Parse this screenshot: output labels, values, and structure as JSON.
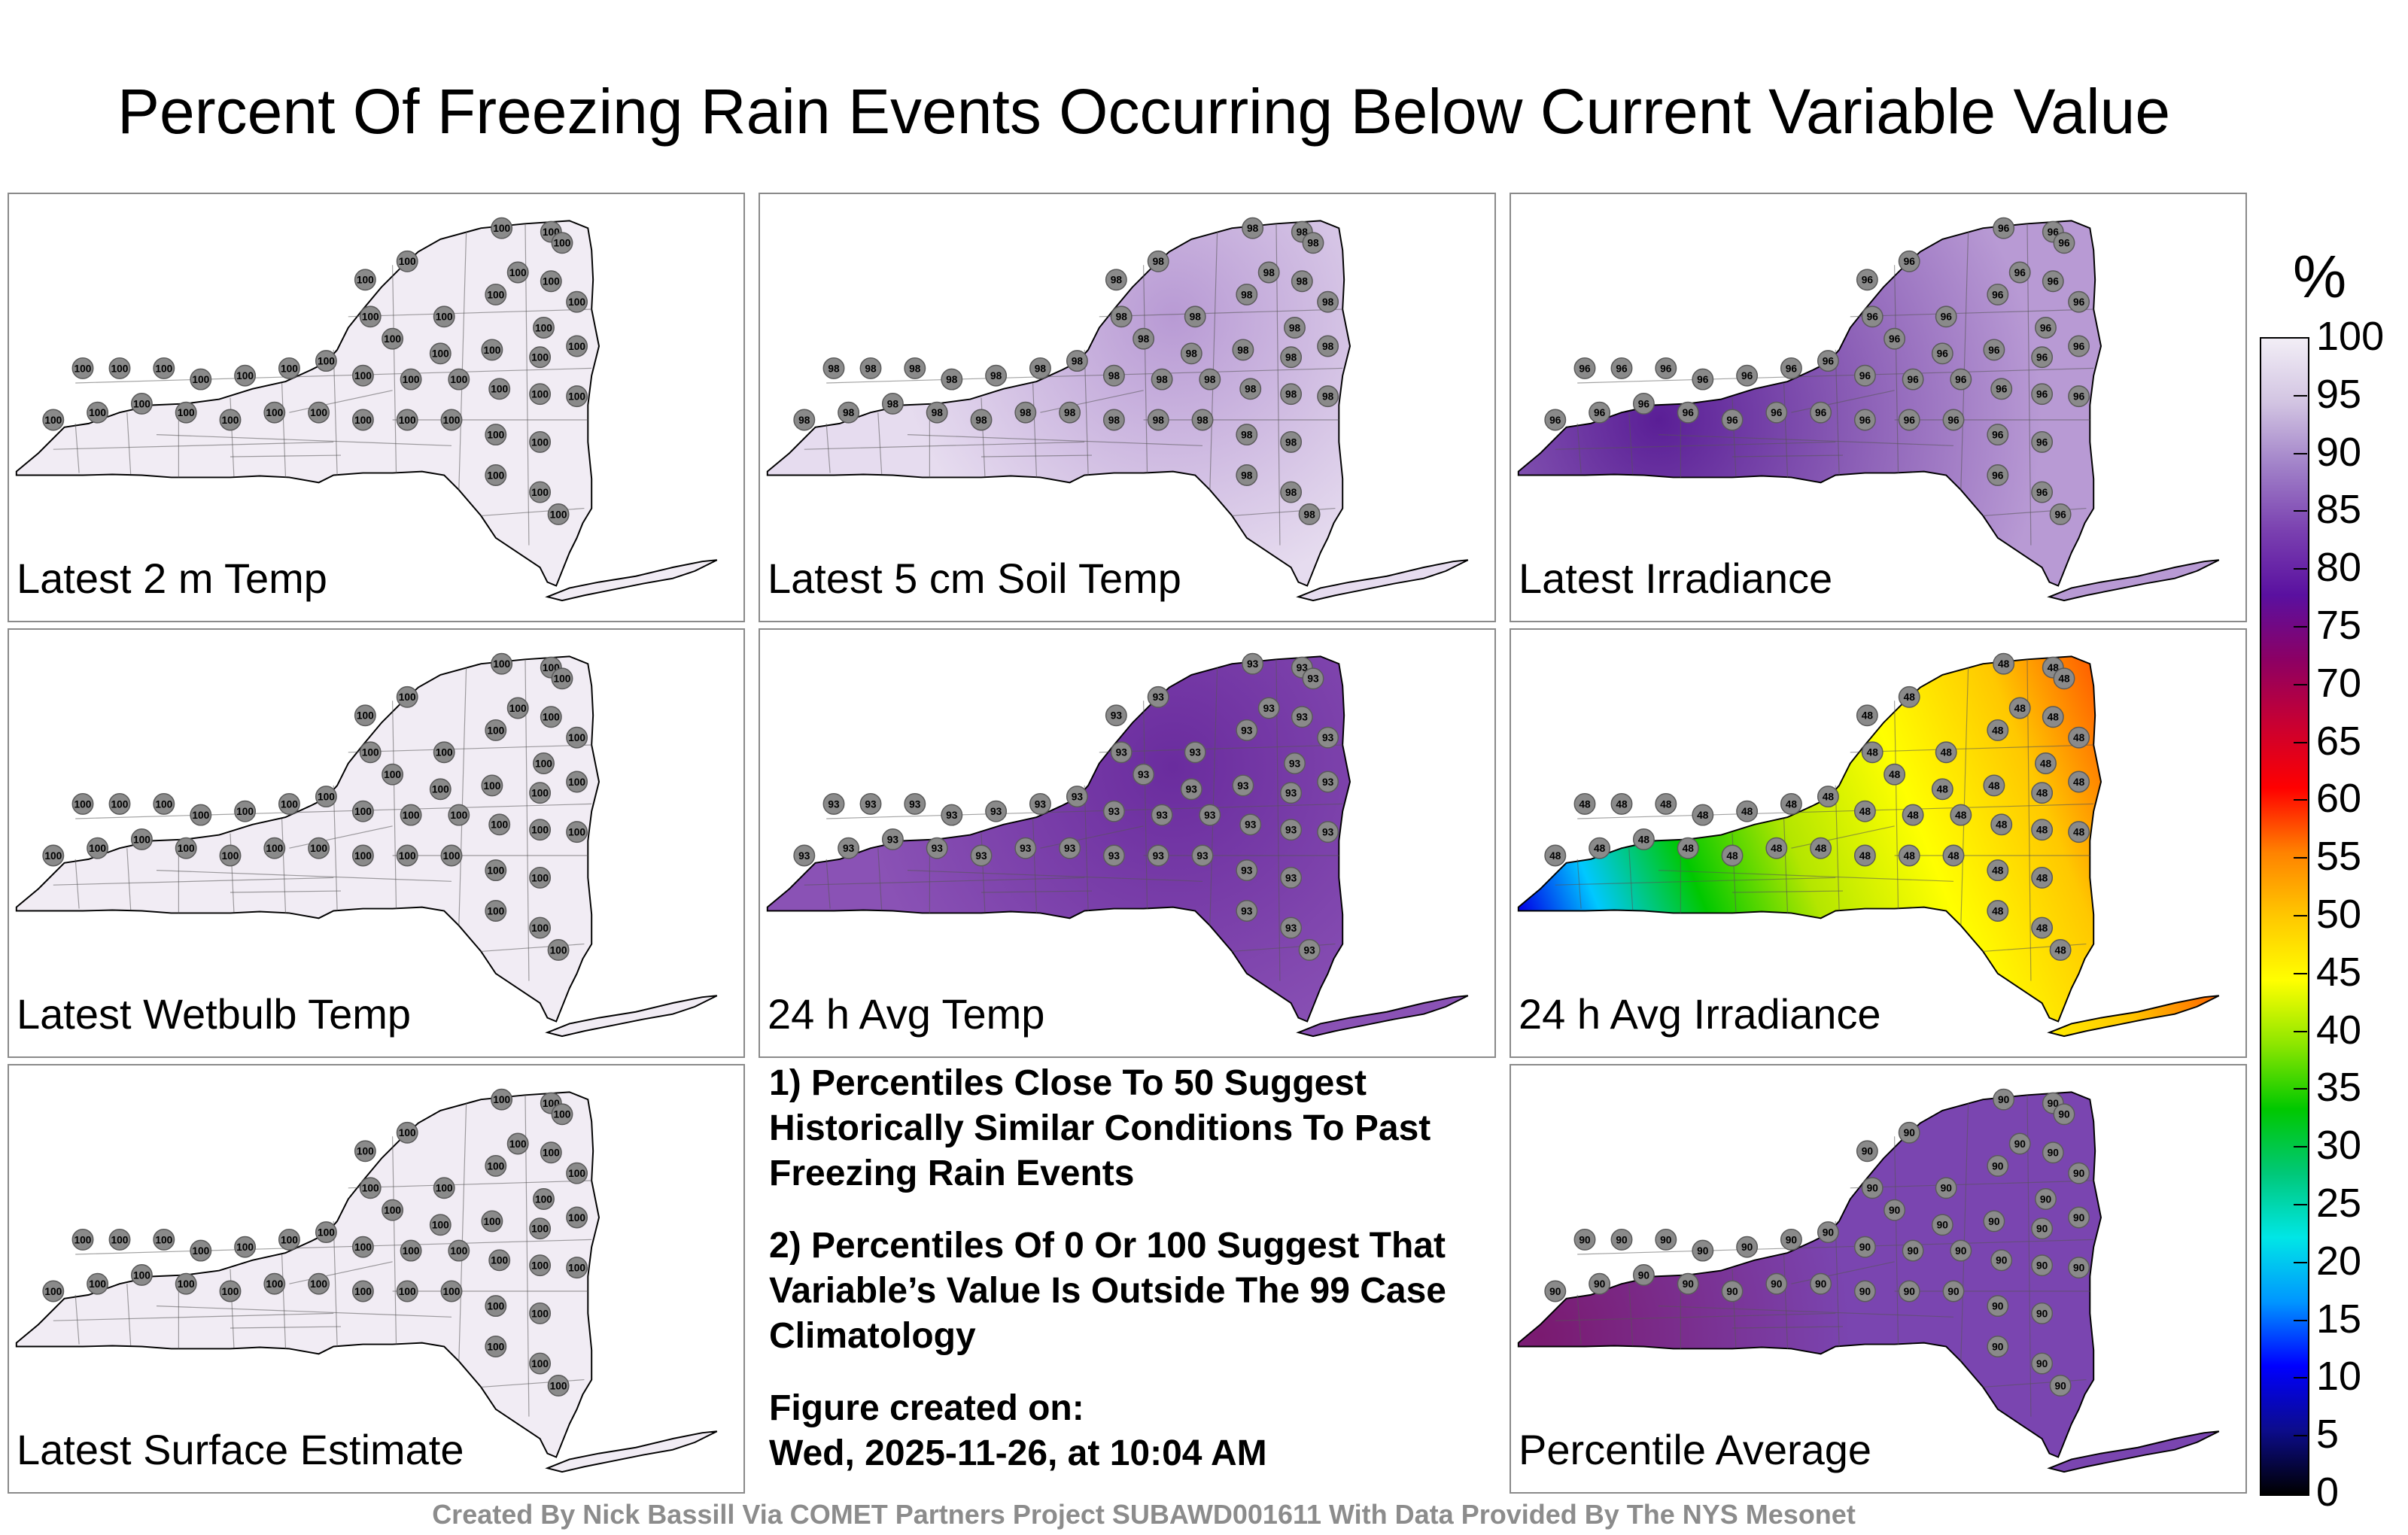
{
  "title": "Percent Of Freezing Rain Events Occurring Below Current Variable Value",
  "panels": [
    {
      "id": "p1",
      "label": "Latest 2 m Temp",
      "fill": "uniform",
      "color": "#f1ecf4",
      "dot_value": "100",
      "stations_shown": 45
    },
    {
      "id": "p2",
      "label": "Latest 5 cm Soil Temp",
      "fill": "soil",
      "color": "#ddd0e8",
      "dot_value": "98",
      "stations_shown": 45
    },
    {
      "id": "p3",
      "label": "Latest Irradiance",
      "fill": "irradiance",
      "color": "#a27cc4",
      "dot_value": "96",
      "stations_shown": 45
    },
    {
      "id": "p4",
      "label": "Latest Wetbulb Temp",
      "fill": "uniform",
      "color": "#f1ecf4",
      "dot_value": "100",
      "stations_shown": 45
    },
    {
      "id": "p5",
      "label": "24 h Avg Temp",
      "fill": "avgtemp",
      "color": "#8147ad",
      "dot_value": "93",
      "stations_shown": 45
    },
    {
      "id": "p6",
      "label": "24 h Avg Irradiance",
      "fill": "avgirr",
      "color": "#c7e600",
      "dot_value": "48",
      "stations_shown": 45
    },
    {
      "id": "p7",
      "label": "Latest Surface Estimate",
      "fill": "uniform",
      "color": "#f1ecf4",
      "dot_value": "100",
      "stations_shown": 45
    },
    {
      "id": "p9",
      "label": "Percentile Average",
      "fill": "average",
      "color": "#7034a2",
      "dot_value": "90",
      "stations_shown": 45
    }
  ],
  "notes": {
    "note1": "1) Percentiles Close To 50 Suggest Historically Similar Conditions To Past Freezing Rain Events",
    "note2": "2) Percentiles Of 0 Or 100 Suggest That Variable’s Value Is Outside The 99 Case Climatology",
    "created_label": "Figure created on:",
    "created_date": "Wed, 2025-11-26, at 10:04 AM"
  },
  "colorbar": {
    "unit": "%",
    "ticks": [
      "100",
      "95",
      "90",
      "85",
      "80",
      "75",
      "70",
      "65",
      "60",
      "55",
      "50",
      "45",
      "40",
      "35",
      "30",
      "25",
      "20",
      "15",
      "10",
      "5",
      "0"
    ],
    "stops": [
      "#000000",
      "#0c0c8c",
      "#0000ff",
      "#0096ff",
      "#00e6e6",
      "#00c878",
      "#00c800",
      "#8ce600",
      "#ffff00",
      "#ffc800",
      "#ff8200",
      "#ff0000",
      "#c80032",
      "#8c0064",
      "#5a10a0",
      "#7a40b0",
      "#a080c8",
      "#d2c4e2",
      "#f2eef6"
    ]
  },
  "credit": "Created By Nick Bassill Via COMET Partners Project SUBAWD001611 With Data Provided By The NYS Mesonet"
}
